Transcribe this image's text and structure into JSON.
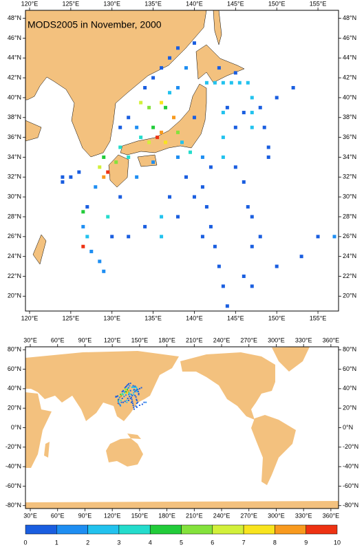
{
  "title": "MODS2005 in November, 2000",
  "panels": [
    {
      "xlim": [
        119.5,
        157.5
      ],
      "ylim": [
        18.5,
        48.8
      ],
      "xticks": [
        {
          "value": 120,
          "label": "120°E"
        },
        {
          "value": 125,
          "label": "125°E"
        },
        {
          "value": 130,
          "label": "130°E"
        },
        {
          "value": 135,
          "label": "135°E"
        },
        {
          "value": 140,
          "label": "140°E"
        },
        {
          "value": 145,
          "label": "145°E"
        },
        {
          "value": 150,
          "label": "150°E"
        },
        {
          "value": 155,
          "label": "155°E"
        }
      ],
      "yticks": [
        {
          "value": 20,
          "label": "20°N"
        },
        {
          "value": 22,
          "label": "22°N"
        },
        {
          "value": 24,
          "label": "24°N"
        },
        {
          "value": 26,
          "label": "26°N"
        },
        {
          "value": 28,
          "label": "28°N"
        },
        {
          "value": 30,
          "label": "30°N"
        },
        {
          "value": 32,
          "label": "32°N"
        },
        {
          "value": 34,
          "label": "34°N"
        },
        {
          "value": 36,
          "label": "36°N"
        },
        {
          "value": 38,
          "label": "38°N"
        },
        {
          "value": 40,
          "label": "40°N"
        },
        {
          "value": 42,
          "label": "42°N"
        },
        {
          "value": 44,
          "label": "44°N"
        },
        {
          "value": 46,
          "label": "46°N"
        },
        {
          "value": 48,
          "label": "48°N"
        }
      ]
    },
    {
      "xlim": [
        24.7,
        368.4
      ],
      "ylim": [
        -83,
        83
      ],
      "xticks": [
        {
          "value": 30,
          "label": "30°E"
        },
        {
          "value": 60,
          "label": "60°E"
        },
        {
          "value": 90,
          "label": "90°E"
        },
        {
          "value": 120,
          "label": "120°E"
        },
        {
          "value": 150,
          "label": "150°E"
        },
        {
          "value": 180,
          "label": "180°E"
        },
        {
          "value": 210,
          "label": "210°E"
        },
        {
          "value": 240,
          "label": "240°E"
        },
        {
          "value": 270,
          "label": "270°E"
        },
        {
          "value": 300,
          "label": "300°E"
        },
        {
          "value": 330,
          "label": "330°E"
        },
        {
          "value": 360,
          "label": "360°E"
        }
      ],
      "yticks": [
        {
          "value": -80,
          "label": "-80°N"
        },
        {
          "value": -60,
          "label": "-60°N"
        },
        {
          "value": -40,
          "label": "-40°N"
        },
        {
          "value": -20,
          "label": "-20°N"
        },
        {
          "value": 0,
          "label": "0°N"
        },
        {
          "value": 20,
          "label": "20°N"
        },
        {
          "value": 40,
          "label": "40°N"
        },
        {
          "value": 60,
          "label": "60°N"
        },
        {
          "value": 80,
          "label": "80°N"
        }
      ]
    }
  ],
  "colorbar": {
    "ticks": [
      0,
      1,
      2,
      3,
      4,
      5,
      6,
      7,
      8,
      9,
      10
    ],
    "colors": [
      "#1a5ee0",
      "#1e8ef2",
      "#22c2ee",
      "#24dccc",
      "#22cc3a",
      "#84e23c",
      "#d2f03a",
      "#f8e41e",
      "#f89a1e",
      "#ee3212"
    ]
  },
  "cells": [
    [
      129.5,
      32.5,
      10
    ],
    [
      129.0,
      32.0,
      9
    ],
    [
      135.5,
      36.0,
      10
    ],
    [
      136.0,
      36.5,
      9
    ],
    [
      136.5,
      35.5,
      8
    ],
    [
      134.5,
      35.5,
      7
    ],
    [
      137.5,
      38.0,
      9
    ],
    [
      136.0,
      39.5,
      8
    ],
    [
      133.5,
      39.5,
      7
    ],
    [
      126.5,
      25.0,
      10
    ],
    [
      134.5,
      39.0,
      6
    ],
    [
      136.5,
      39.0,
      5
    ],
    [
      135.0,
      37.0,
      5
    ],
    [
      133.5,
      36.0,
      4
    ],
    [
      131.0,
      35.0,
      4
    ],
    [
      129.0,
      34.0,
      5
    ],
    [
      130.5,
      33.5,
      6
    ],
    [
      132.0,
      34.0,
      4
    ],
    [
      128.5,
      33.0,
      7
    ],
    [
      126.5,
      28.5,
      5
    ],
    [
      129.5,
      28.0,
      4
    ],
    [
      137.0,
      40.5,
      3
    ],
    [
      138.0,
      36.5,
      6
    ],
    [
      139.5,
      34.5,
      4
    ],
    [
      138.5,
      35.5,
      3
    ],
    [
      141.5,
      41.5,
      3
    ],
    [
      142.5,
      41.5,
      3
    ],
    [
      143.5,
      41.5,
      3
    ],
    [
      144.5,
      41.5,
      3
    ],
    [
      145.5,
      41.5,
      3
    ],
    [
      146.5,
      41.5,
      3
    ],
    [
      147.0,
      40.0,
      3
    ],
    [
      147.0,
      38.5,
      3
    ],
    [
      147.0,
      37.0,
      3
    ],
    [
      143.5,
      38.5,
      3
    ],
    [
      143.5,
      36.0,
      3
    ],
    [
      143.5,
      34.0,
      3
    ],
    [
      136.0,
      28.0,
      3
    ],
    [
      136.0,
      26.0,
      3
    ],
    [
      126.5,
      27.0,
      2
    ],
    [
      127.5,
      24.5,
      2
    ],
    [
      128.5,
      23.5,
      2
    ],
    [
      129.0,
      22.5,
      2
    ],
    [
      127.0,
      26.0,
      3
    ],
    [
      134.0,
      41.0,
      1
    ],
    [
      135.0,
      42.0,
      1
    ],
    [
      136.0,
      43.0,
      1
    ],
    [
      137.0,
      44.0,
      1
    ],
    [
      138.0,
      45.0,
      1
    ],
    [
      139.0,
      43.0,
      2
    ],
    [
      140.0,
      45.5,
      1
    ],
    [
      138.0,
      41.0,
      2
    ],
    [
      132.0,
      38.0,
      1
    ],
    [
      131.0,
      37.0,
      1
    ],
    [
      133.0,
      37.0,
      2
    ],
    [
      140.0,
      38.0,
      1
    ],
    [
      143.0,
      43.0,
      1
    ],
    [
      145.0,
      42.5,
      1
    ],
    [
      146.0,
      38.5,
      1
    ],
    [
      145.0,
      37.0,
      1
    ],
    [
      144.0,
      39.0,
      1
    ],
    [
      148.0,
      39.0,
      1
    ],
    [
      148.5,
      37.0,
      1
    ],
    [
      149.0,
      35.0,
      1
    ],
    [
      149.0,
      34.0,
      1
    ],
    [
      150.0,
      40.0,
      1
    ],
    [
      152.0,
      41.0,
      1
    ],
    [
      141.0,
      34.0,
      2
    ],
    [
      142.0,
      33.0,
      1
    ],
    [
      141.0,
      31.0,
      1
    ],
    [
      141.5,
      29.0,
      1
    ],
    [
      142.0,
      27.0,
      1
    ],
    [
      142.5,
      25.0,
      1
    ],
    [
      143.0,
      23.0,
      1
    ],
    [
      143.5,
      21.0,
      1
    ],
    [
      144.0,
      19.0,
      1
    ],
    [
      137.0,
      30.0,
      1
    ],
    [
      138.0,
      28.0,
      1
    ],
    [
      134.0,
      27.0,
      1
    ],
    [
      132.0,
      26.0,
      1
    ],
    [
      130.0,
      26.0,
      1
    ],
    [
      128.0,
      31.0,
      2
    ],
    [
      126.0,
      32.5,
      1
    ],
    [
      125.0,
      32.0,
      1
    ],
    [
      124.0,
      32.0,
      1
    ],
    [
      124.0,
      31.5,
      1
    ],
    [
      127.0,
      29.0,
      1
    ],
    [
      133.0,
      32.0,
      2
    ],
    [
      131.0,
      30.0,
      1
    ],
    [
      135.0,
      33.5,
      2
    ],
    [
      138.0,
      34.0,
      2
    ],
    [
      139.0,
      32.0,
      1
    ],
    [
      140.0,
      30.0,
      1
    ],
    [
      146.0,
      31.5,
      1
    ],
    [
      146.5,
      29.0,
      1
    ],
    [
      147.0,
      28.0,
      1
    ],
    [
      148.0,
      26.0,
      1
    ],
    [
      145.0,
      33.0,
      1
    ],
    [
      147.0,
      25.0,
      1
    ],
    [
      141.0,
      26.0,
      1
    ],
    [
      146.0,
      22.0,
      1
    ],
    [
      147.0,
      21.0,
      1
    ],
    [
      150.0,
      23.0,
      1
    ],
    [
      153.0,
      24.0,
      1
    ],
    [
      155.0,
      26.0,
      1
    ],
    [
      157.0,
      26.0,
      2
    ]
  ]
}
